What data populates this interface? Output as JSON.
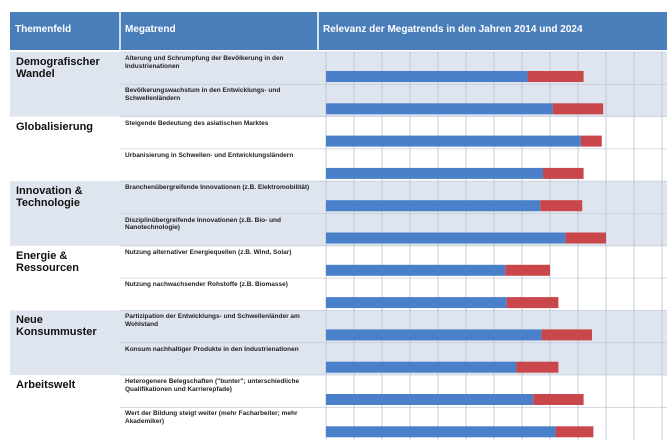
{
  "chart_data": {
    "type": "bar",
    "columns": [
      "Themenfeld",
      "Megatrend",
      "Relevanz der Megatrends in den Jahren 2014 und 2024"
    ],
    "groups": [
      {
        "name": "Demografischer Wandel",
        "trends": [
          "Alterung und Schrumpfung der Bevölkerung in den Industrienationen",
          "Bevölkerungswachstum in den Entwicklungs- und Schwellenländern"
        ]
      },
      {
        "name": "Globalisierung",
        "trends": [
          "Steigende Bedeutung des asiatischen Marktes",
          "Urbanisierung in Schwellen- und Entwicklungsländern"
        ]
      },
      {
        "name": "Innovation & Technologie",
        "trends": [
          "Branchenübergreifende Innovationen (z.B. Elektromobilität)",
          "Disziplinübergreifende Innovationen (z.B. Bio- und Nanotechnologie)"
        ]
      },
      {
        "name": "Energie & Ressourcen",
        "trends": [
          "Nutzung alternativer Energiequellen (z.B. Wind, Solar)",
          "Nutzung nachwachsender Rohstoffe (z.B. Biomasse)"
        ]
      },
      {
        "name": "Neue Konsummuster",
        "trends": [
          "Partizipation der Entwicklungs- und Schwellenländer am Wohlstand",
          "Konsum nachhaltiger Produkte in den Industrienationen"
        ]
      },
      {
        "name": "Arbeitswelt",
        "trends": [
          "Heterogenere Belegschaften (\"bunter\"; unterschiedliche Qualifikationen und Karrierepfade)",
          "Wert der Bildung steigt weiter (mehr Facharbeiter; mehr Akademiker)"
        ]
      }
    ],
    "series": [
      {
        "color": "#4a7fc9",
        "values": [
          7.2,
          8.1,
          9.1,
          7.75,
          7.65,
          8.55,
          6.4,
          6.45,
          7.7,
          6.8,
          7.4,
          8.2
        ]
      },
      {
        "color": "#c9474a",
        "values": [
          2.0,
          1.8,
          0.75,
          1.45,
          1.5,
          1.45,
          1.6,
          1.85,
          1.8,
          1.5,
          1.8,
          1.35
        ]
      }
    ],
    "stacked": true,
    "xlim": [
      0,
      12
    ],
    "xticks": [
      0,
      1,
      2,
      3,
      4,
      5,
      6,
      7,
      8,
      9,
      10,
      11,
      12
    ],
    "grid": true
  }
}
